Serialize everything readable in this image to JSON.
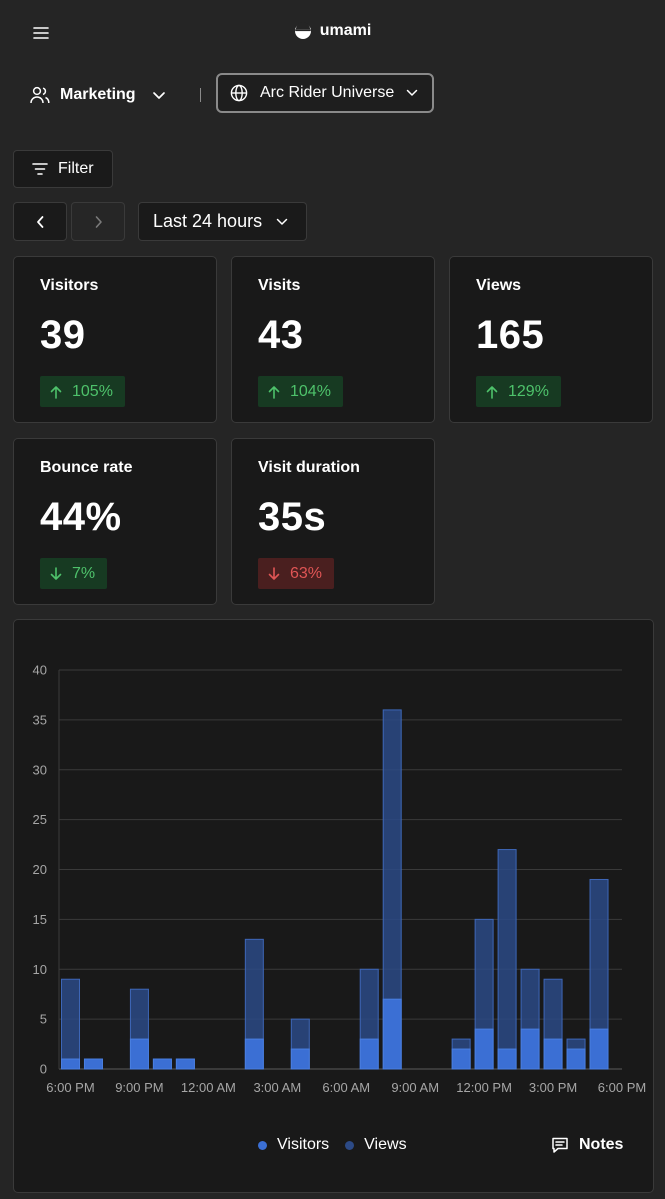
{
  "header": {
    "brand": "umami",
    "menu_icon": "hamburger-menu-icon",
    "logo_icon": "umami-logo-icon"
  },
  "team_select": {
    "label": "Marketing",
    "icon": "users-icon"
  },
  "site_select": {
    "label": "Arc Rider Universe",
    "icon": "globe-icon"
  },
  "filter": {
    "label": "Filter",
    "icon": "filter-lines-icon"
  },
  "date_range": {
    "label": "Last 24 hours"
  },
  "metrics": [
    {
      "label": "Visitors",
      "value": "39",
      "change": "105%",
      "direction": "up"
    },
    {
      "label": "Visits",
      "value": "43",
      "change": "104%",
      "direction": "up"
    },
    {
      "label": "Views",
      "value": "165",
      "change": "129%",
      "direction": "up"
    },
    {
      "label": "Bounce rate",
      "value": "44%",
      "change": "7%",
      "direction": "down",
      "good": true
    },
    {
      "label": "Visit duration",
      "value": "35s",
      "change": "63%",
      "direction": "down",
      "good": false
    }
  ],
  "colors": {
    "visitors": "#3b6fd4",
    "views": "#2c4a86",
    "positive": "#4ec26b",
    "negative": "#e05555"
  },
  "legend": {
    "visitors": "Visitors",
    "views": "Views"
  },
  "notes": {
    "label": "Notes",
    "icon": "notes-icon"
  },
  "chart_data": {
    "type": "bar",
    "stacked_overlay": true,
    "ylim": [
      0,
      40
    ],
    "yticks": [
      0,
      5,
      10,
      15,
      20,
      25,
      30,
      35,
      40
    ],
    "xtick_labels": [
      "6:00 PM",
      "9:00 PM",
      "12:00 AM",
      "3:00 AM",
      "6:00 AM",
      "9:00 AM",
      "12:00 PM",
      "3:00 PM",
      "6:00 PM"
    ],
    "x": [
      "6:00 PM",
      "7:00 PM",
      "8:00 PM",
      "9:00 PM",
      "10:00 PM",
      "11:00 PM",
      "12:00 AM",
      "1:00 AM",
      "2:00 AM",
      "3:00 AM",
      "4:00 AM",
      "5:00 AM",
      "6:00 AM",
      "7:00 AM",
      "8:00 AM",
      "9:00 AM",
      "10:00 AM",
      "11:00 AM",
      "12:00 PM",
      "1:00 PM",
      "2:00 PM",
      "3:00 PM",
      "4:00 PM",
      "5:00 PM",
      "6:00 PM"
    ],
    "series": [
      {
        "name": "Visitors",
        "values": [
          1,
          1,
          0,
          3,
          1,
          1,
          0,
          0,
          3,
          0,
          2,
          0,
          0,
          3,
          7,
          0,
          0,
          2,
          4,
          2,
          4,
          3,
          2,
          4,
          0
        ]
      },
      {
        "name": "Views",
        "values": [
          9,
          1,
          0,
          8,
          1,
          1,
          0,
          0,
          13,
          0,
          5,
          0,
          0,
          10,
          36,
          0,
          0,
          3,
          15,
          22,
          10,
          9,
          3,
          19,
          0
        ]
      }
    ],
    "legend_position": "bottom",
    "grid": true
  }
}
